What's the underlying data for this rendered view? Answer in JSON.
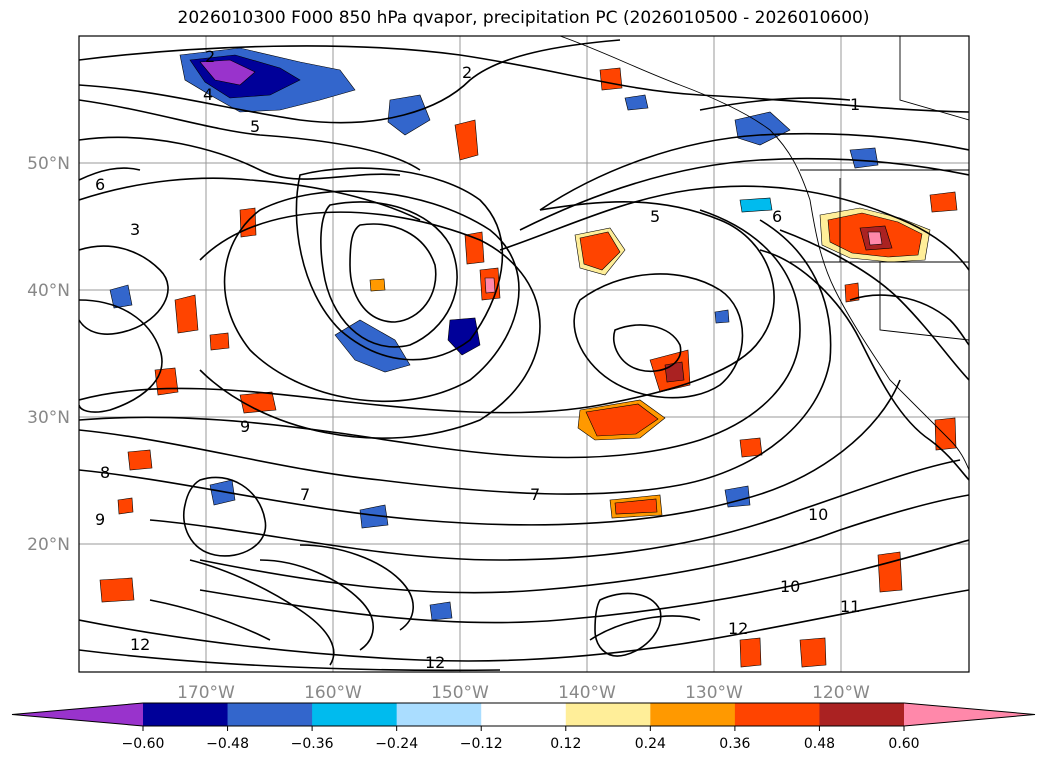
{
  "title": "2026010300 F000 850 hPa qvapor, precipitation PC (2026010500 - 2026010600)",
  "map": {
    "lat_labels": [
      "50°N",
      "40°N",
      "30°N",
      "20°N"
    ],
    "lon_labels": [
      "170°W",
      "160°W",
      "150°W",
      "140°W",
      "130°W",
      "120°W"
    ],
    "contour_labels": [
      "2",
      "4",
      "5",
      "6",
      "1",
      "2",
      "5",
      "6",
      "3",
      "9",
      "8",
      "7",
      "10",
      "12",
      "10",
      "12",
      "11",
      "12",
      "9",
      "7"
    ]
  },
  "colorbar": {
    "ticks": [
      "−0.60",
      "−0.48",
      "−0.36",
      "−0.24",
      "−0.12",
      "0.12",
      "0.24",
      "0.36",
      "0.48",
      "0.60"
    ],
    "colors": [
      "#9933cc",
      "#000099",
      "#3366cc",
      "#00bbee",
      "#aaddff",
      "#ffffff",
      "#ffee99",
      "#ff9900",
      "#ff4400",
      "#aa2222",
      "#ff88aa"
    ]
  }
}
